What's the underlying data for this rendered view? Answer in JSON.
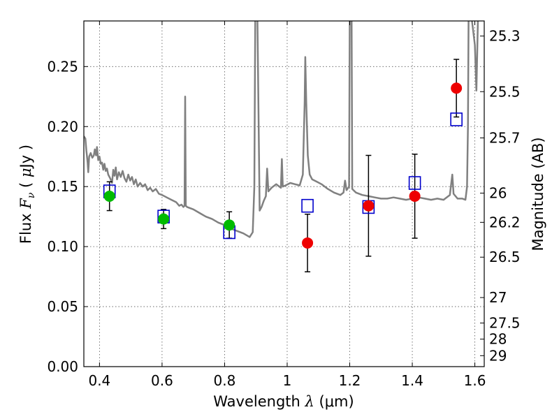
{
  "chart_data": {
    "type": "scatter",
    "xlabel": "Wavelength  λ (μm)",
    "ylabel": "Flux  F_ν  ( μJy )",
    "ylabel_parts": {
      "prefix": "Flux  ",
      "var": "F",
      "sub": "ν",
      "mid": "  (",
      "mu": "μ",
      "unit": "Jy )"
    },
    "xlabel_parts": {
      "prefix": "Wavelength  ",
      "var": "λ",
      "unit": " (μm)"
    },
    "y2label": "Magnitude (AB)",
    "xlim": [
      0.35,
      1.63
    ],
    "ylim": [
      0.0,
      0.288
    ],
    "grid": true,
    "x_ticks": [
      {
        "value": 0.4,
        "label": "0.4"
      },
      {
        "value": 0.6,
        "label": "0.6"
      },
      {
        "value": 0.8,
        "label": "0.8"
      },
      {
        "value": 1.0,
        "label": "1"
      },
      {
        "value": 1.2,
        "label": "1.2"
      },
      {
        "value": 1.4,
        "label": "1.4"
      },
      {
        "value": 1.6,
        "label": "1.6"
      }
    ],
    "y_ticks": [
      {
        "value": 0.0,
        "label": "0.00"
      },
      {
        "value": 0.05,
        "label": "0.05"
      },
      {
        "value": 0.1,
        "label": "0.10"
      },
      {
        "value": 0.15,
        "label": "0.15"
      },
      {
        "value": 0.2,
        "label": "0.20"
      },
      {
        "value": 0.25,
        "label": "0.25"
      }
    ],
    "mag_ticks": [
      {
        "value": 25.3,
        "label": "25.3"
      },
      {
        "value": 25.5,
        "label": "25.5"
      },
      {
        "value": 25.7,
        "label": "25.7"
      },
      {
        "value": 26.0,
        "label": "26"
      },
      {
        "value": 26.2,
        "label": "26.2"
      },
      {
        "value": 26.5,
        "label": "26.5"
      },
      {
        "value": 27.0,
        "label": "27"
      },
      {
        "value": 27.5,
        "label": "27.5"
      },
      {
        "value": 28.0,
        "label": "28"
      },
      {
        "value": 29.0,
        "label": "29"
      }
    ],
    "colors": {
      "model_line": "#808080",
      "model_box": "#0000cc",
      "obs_green": "#00bb00",
      "obs_red": "#ee0000",
      "errorbar": "#000000",
      "grid": "#555555"
    },
    "series": [
      {
        "kind": "model_spectrum",
        "color": "#808080",
        "points": [
          [
            0.35,
            0.192
          ],
          [
            0.355,
            0.19
          ],
          [
            0.358,
            0.18
          ],
          [
            0.362,
            0.17
          ],
          [
            0.364,
            0.162
          ],
          [
            0.367,
            0.175
          ],
          [
            0.372,
            0.178
          ],
          [
            0.377,
            0.174
          ],
          [
            0.382,
            0.176
          ],
          [
            0.385,
            0.181
          ],
          [
            0.389,
            0.176
          ],
          [
            0.392,
            0.183
          ],
          [
            0.396,
            0.172
          ],
          [
            0.4,
            0.175
          ],
          [
            0.404,
            0.169
          ],
          [
            0.408,
            0.17
          ],
          [
            0.412,
            0.164
          ],
          [
            0.416,
            0.169
          ],
          [
            0.42,
            0.163
          ],
          [
            0.424,
            0.165
          ],
          [
            0.428,
            0.16
          ],
          [
            0.434,
            0.157
          ],
          [
            0.44,
            0.153
          ],
          [
            0.444,
            0.164
          ],
          [
            0.448,
            0.159
          ],
          [
            0.452,
            0.166
          ],
          [
            0.456,
            0.156
          ],
          [
            0.462,
            0.162
          ],
          [
            0.468,
            0.158
          ],
          [
            0.474,
            0.163
          ],
          [
            0.48,
            0.157
          ],
          [
            0.486,
            0.154
          ],
          [
            0.492,
            0.16
          ],
          [
            0.498,
            0.155
          ],
          [
            0.504,
            0.158
          ],
          [
            0.51,
            0.152
          ],
          [
            0.516,
            0.156
          ],
          [
            0.522,
            0.15
          ],
          [
            0.53,
            0.153
          ],
          [
            0.538,
            0.15
          ],
          [
            0.546,
            0.152
          ],
          [
            0.554,
            0.147
          ],
          [
            0.562,
            0.149
          ],
          [
            0.57,
            0.146
          ],
          [
            0.58,
            0.148
          ],
          [
            0.59,
            0.144
          ],
          [
            0.6,
            0.143
          ],
          [
            0.615,
            0.141
          ],
          [
            0.63,
            0.139
          ],
          [
            0.645,
            0.137
          ],
          [
            0.655,
            0.134
          ],
          [
            0.662,
            0.135
          ],
          [
            0.668,
            0.133
          ],
          [
            0.672,
            0.134
          ],
          [
            0.674,
            0.225
          ],
          [
            0.676,
            0.134
          ],
          [
            0.68,
            0.133
          ],
          [
            0.7,
            0.131
          ],
          [
            0.72,
            0.128
          ],
          [
            0.74,
            0.125
          ],
          [
            0.76,
            0.123
          ],
          [
            0.78,
            0.12
          ],
          [
            0.8,
            0.118
          ],
          [
            0.82,
            0.115
          ],
          [
            0.84,
            0.113
          ],
          [
            0.86,
            0.111
          ],
          [
            0.88,
            0.108
          ],
          [
            0.89,
            0.112
          ],
          [
            0.895,
            0.15
          ],
          [
            0.898,
            0.29
          ],
          [
            0.905,
            0.29
          ],
          [
            0.912,
            0.13
          ],
          [
            0.918,
            0.133
          ],
          [
            0.925,
            0.138
          ],
          [
            0.932,
            0.142
          ],
          [
            0.936,
            0.165
          ],
          [
            0.94,
            0.146
          ],
          [
            0.95,
            0.149
          ],
          [
            0.965,
            0.152
          ],
          [
            0.975,
            0.15
          ],
          [
            0.98,
            0.149
          ],
          [
            0.983,
            0.173
          ],
          [
            0.986,
            0.15
          ],
          [
            0.995,
            0.151
          ],
          [
            1.01,
            0.153
          ],
          [
            1.025,
            0.152
          ],
          [
            1.04,
            0.151
          ],
          [
            1.05,
            0.16
          ],
          [
            1.056,
            0.22
          ],
          [
            1.058,
            0.258
          ],
          [
            1.061,
            0.22
          ],
          [
            1.066,
            0.176
          ],
          [
            1.072,
            0.16
          ],
          [
            1.08,
            0.156
          ],
          [
            1.095,
            0.154
          ],
          [
            1.11,
            0.152
          ],
          [
            1.13,
            0.148
          ],
          [
            1.15,
            0.145
          ],
          [
            1.17,
            0.143
          ],
          [
            1.18,
            0.145
          ],
          [
            1.185,
            0.155
          ],
          [
            1.19,
            0.147
          ],
          [
            1.198,
            0.15
          ],
          [
            1.2,
            0.29
          ],
          [
            1.206,
            0.29
          ],
          [
            1.208,
            0.148
          ],
          [
            1.22,
            0.145
          ],
          [
            1.24,
            0.143
          ],
          [
            1.26,
            0.142
          ],
          [
            1.28,
            0.141
          ],
          [
            1.3,
            0.14
          ],
          [
            1.32,
            0.14
          ],
          [
            1.34,
            0.141
          ],
          [
            1.36,
            0.14
          ],
          [
            1.38,
            0.139
          ],
          [
            1.4,
            0.14
          ],
          [
            1.42,
            0.141
          ],
          [
            1.44,
            0.14
          ],
          [
            1.46,
            0.139
          ],
          [
            1.48,
            0.14
          ],
          [
            1.5,
            0.139
          ],
          [
            1.52,
            0.143
          ],
          [
            1.528,
            0.16
          ],
          [
            1.532,
            0.144
          ],
          [
            1.545,
            0.14
          ],
          [
            1.56,
            0.14
          ],
          [
            1.57,
            0.139
          ],
          [
            1.575,
            0.15
          ],
          [
            1.578,
            0.2
          ],
          [
            1.58,
            0.29
          ],
          [
            1.59,
            0.29
          ],
          [
            1.6,
            0.268
          ],
          [
            1.605,
            0.23
          ],
          [
            1.61,
            0.29
          ]
        ]
      },
      {
        "kind": "model_photometry",
        "marker": "open-square",
        "color": "#0000cc",
        "points": [
          {
            "x": 0.432,
            "y": 0.146
          },
          {
            "x": 0.605,
            "y": 0.125
          },
          {
            "x": 0.815,
            "y": 0.112
          },
          {
            "x": 1.065,
            "y": 0.134
          },
          {
            "x": 1.26,
            "y": 0.133
          },
          {
            "x": 1.408,
            "y": 0.153
          },
          {
            "x": 1.541,
            "y": 0.206
          }
        ]
      },
      {
        "kind": "observed_photometry",
        "marker": "filled-circle",
        "points": [
          {
            "x": 0.432,
            "y": 0.142,
            "err_lo": 0.012,
            "err_hi": 0.012,
            "color": "#00bb00"
          },
          {
            "x": 0.605,
            "y": 0.123,
            "err_lo": 0.008,
            "err_hi": 0.008,
            "color": "#00bb00"
          },
          {
            "x": 0.815,
            "y": 0.118,
            "err_lo": 0.011,
            "err_hi": 0.011,
            "color": "#00bb00"
          },
          {
            "x": 1.065,
            "y": 0.103,
            "err_lo": 0.024,
            "err_hi": 0.024,
            "color": "#ee0000"
          },
          {
            "x": 1.26,
            "y": 0.134,
            "err_lo": 0.042,
            "err_hi": 0.042,
            "color": "#ee0000"
          },
          {
            "x": 1.408,
            "y": 0.142,
            "err_lo": 0.035,
            "err_hi": 0.035,
            "color": "#ee0000"
          },
          {
            "x": 1.541,
            "y": 0.232,
            "err_lo": 0.024,
            "err_hi": 0.024,
            "color": "#ee0000"
          }
        ]
      }
    ]
  }
}
